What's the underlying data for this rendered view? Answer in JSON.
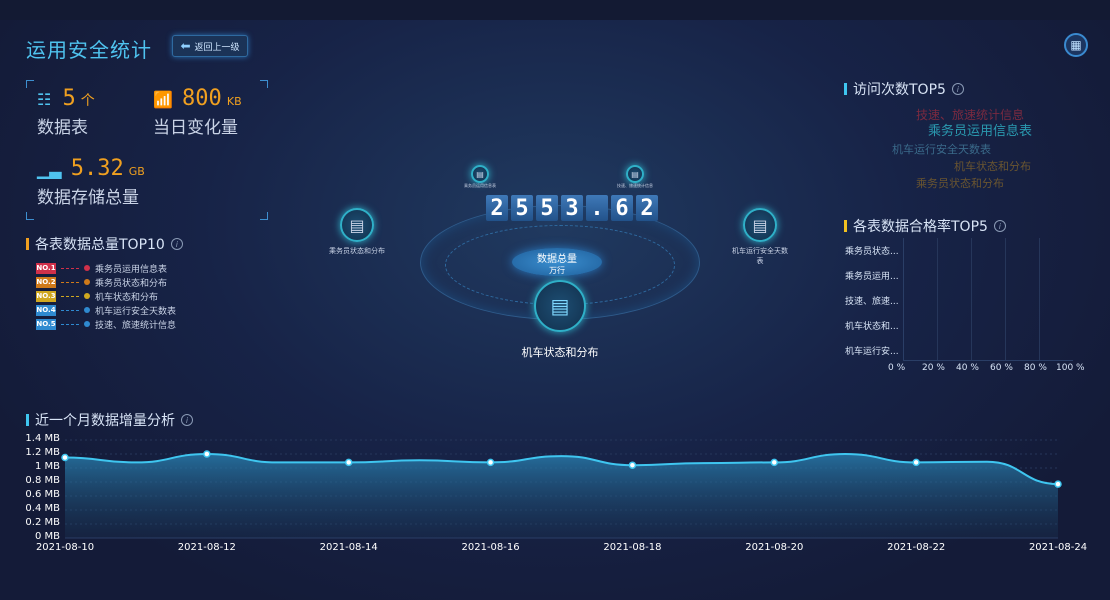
{
  "header": {
    "title": "运用安全统计",
    "back_label": "返回上一级",
    "menu_icon": "grid-icon"
  },
  "stats": [
    {
      "icon": "hierarchy-icon",
      "value": "5",
      "unit": "个",
      "label": "数据表"
    },
    {
      "icon": "signal-chart-icon",
      "value": "800",
      "unit": "KB",
      "label": "当日变化量"
    },
    {
      "icon": "bar-chart-icon",
      "value": "5.32",
      "unit": "GB",
      "label": "数据存储总量"
    }
  ],
  "top10": {
    "title": "各表数据总量TOP10",
    "items": [
      {
        "rank": "NO.1",
        "name": "乘务员运用信息表",
        "color": "#d0304a"
      },
      {
        "rank": "NO.2",
        "name": "乘务员状态和分布",
        "color": "#d07a1a"
      },
      {
        "rank": "NO.3",
        "name": "机车状态和分布",
        "color": "#d0a820"
      },
      {
        "rank": "NO.4",
        "name": "机车运行安全天数表",
        "color": "#2f8ad0"
      },
      {
        "rank": "NO.5",
        "name": "技速、旅速统计信息",
        "color": "#2f8ad0"
      }
    ]
  },
  "center": {
    "total_digits": [
      "2",
      "5",
      "5",
      "3",
      ".",
      "6",
      "2"
    ],
    "total_label": "数据总量",
    "total_unit": "万行",
    "nodes": [
      "乘务员状态和分布",
      "乘务员运用信息表",
      "技速、旅速统计信息",
      "机车运行安全天数表",
      "机车状态和分布"
    ]
  },
  "visits": {
    "title": "访问次数TOP5",
    "words": [
      {
        "text": "技速、旅速统计信息",
        "color": "#7a2a40"
      },
      {
        "text": "乘务员运用信息表",
        "color": "#2a8aa0"
      },
      {
        "text": "机车运行安全天数表",
        "color": "#2a4a6a"
      },
      {
        "text": "机车状态和分布",
        "color": "#6a5530"
      },
      {
        "text": "乘务员状态和分布",
        "color": "#6a5530"
      }
    ]
  },
  "pass_rate": {
    "title": "各表数据合格率TOP5",
    "categories": [
      "乘务员状态...",
      "乘务员运用...",
      "技速、旅速...",
      "机车状态和...",
      "机车运行安..."
    ],
    "ticks": [
      "0 %",
      "20 %",
      "40 %",
      "60 %",
      "80 %",
      "100 %"
    ]
  },
  "chart_data": {
    "type": "area",
    "title": "近一个月数据增量分析",
    "x": [
      "2021-08-10",
      "2021-08-11",
      "2021-08-12",
      "2021-08-13",
      "2021-08-14",
      "2021-08-15",
      "2021-08-16",
      "2021-08-17",
      "2021-08-18",
      "2021-08-19",
      "2021-08-20",
      "2021-08-21",
      "2021-08-22",
      "2021-08-23",
      "2021-08-24"
    ],
    "values": [
      1.15,
      1.08,
      1.2,
      1.08,
      1.08,
      1.11,
      1.08,
      1.17,
      1.04,
      1.07,
      1.08,
      1.2,
      1.08,
      1.09,
      0.77
    ],
    "x_ticks": [
      "2021-08-10",
      "2021-08-12",
      "2021-08-14",
      "2021-08-16",
      "2021-08-18",
      "2021-08-20",
      "2021-08-22",
      "2021-08-24"
    ],
    "y_ticks": [
      "0 MB",
      "0.2 MB",
      "0.4 MB",
      "0.6 MB",
      "0.8 MB",
      "1 MB",
      "1.2 MB",
      "1.4 MB"
    ],
    "ylim": [
      0,
      1.4
    ],
    "unit": "MB",
    "line_color": "#3fc6f0"
  }
}
